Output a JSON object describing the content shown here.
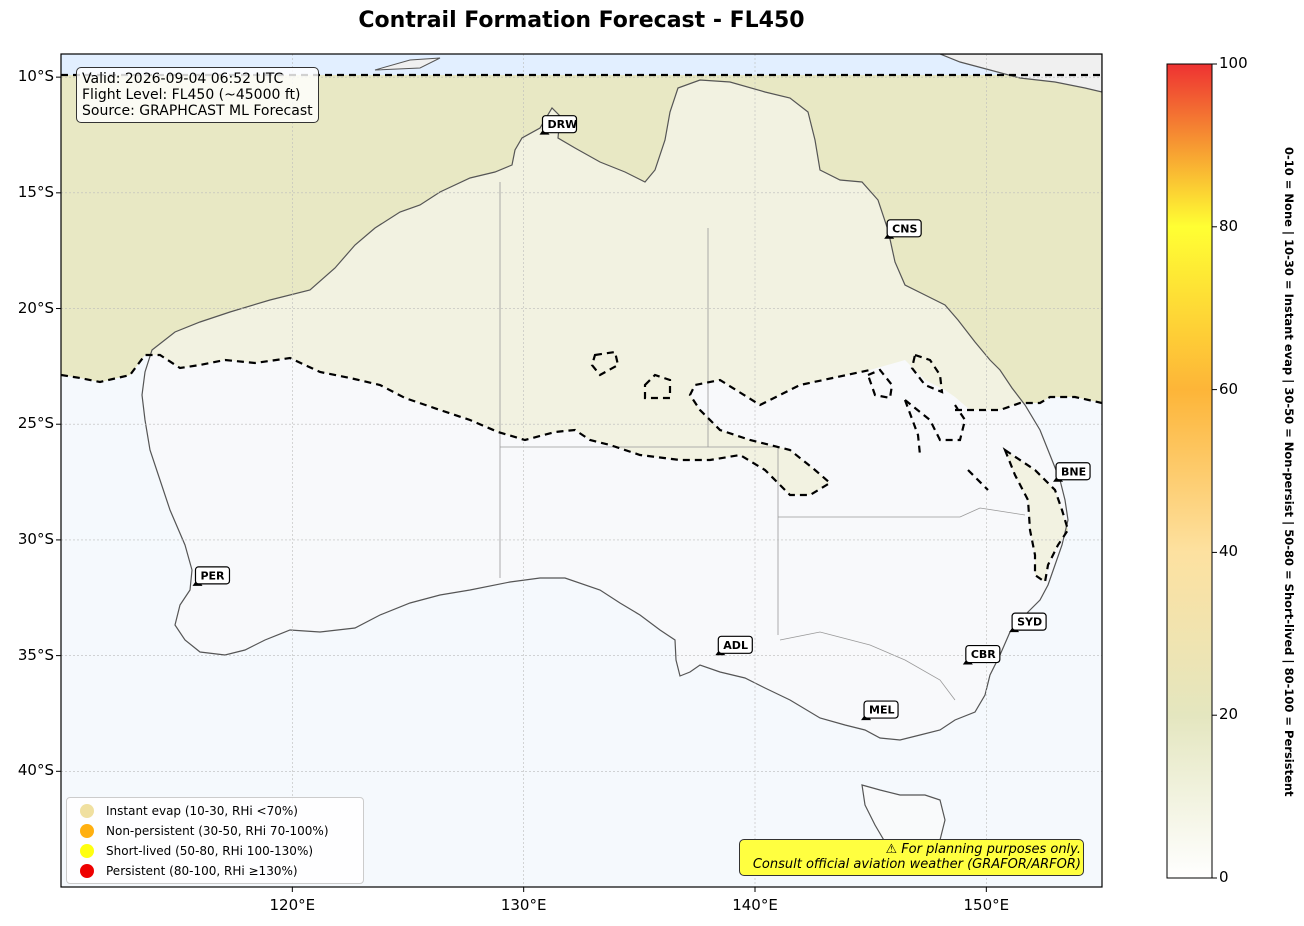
{
  "title": "Contrail Formation Forecast - FL450",
  "info": {
    "valid": "Valid: 2026-09-04 06:52 UTC",
    "flight_level": "Flight Level: FL450 (~45000 ft)",
    "source": "Source: GRAPHCAST ML Forecast"
  },
  "map_extent": {
    "lon": [
      110,
      155
    ],
    "lat": [
      -45,
      -9
    ]
  },
  "lat_ticks": [
    {
      "value": -10,
      "label": "10°S"
    },
    {
      "value": -15,
      "label": "15°S"
    },
    {
      "value": -20,
      "label": "20°S"
    },
    {
      "value": -25,
      "label": "25°S"
    },
    {
      "value": -30,
      "label": "30°S"
    },
    {
      "value": -35,
      "label": "35°S"
    },
    {
      "value": -40,
      "label": "40°S"
    }
  ],
  "lon_ticks": [
    {
      "value": 120,
      "label": "120°E"
    },
    {
      "value": 130,
      "label": "130°E"
    },
    {
      "value": 140,
      "label": "140°E"
    },
    {
      "value": 150,
      "label": "150°E"
    }
  ],
  "airports": [
    {
      "code": "DRW",
      "lon": 130.9,
      "lat": -12.4
    },
    {
      "code": "CNS",
      "lon": 145.8,
      "lat": -16.9
    },
    {
      "code": "BNE",
      "lon": 153.1,
      "lat": -27.4
    },
    {
      "code": "PER",
      "lon": 115.9,
      "lat": -31.9
    },
    {
      "code": "SYD",
      "lon": 151.2,
      "lat": -33.9
    },
    {
      "code": "ADL",
      "lon": 138.5,
      "lat": -34.9
    },
    {
      "code": "CBR",
      "lon": 149.2,
      "lat": -35.3
    },
    {
      "code": "MEL",
      "lon": 144.8,
      "lat": -37.7
    }
  ],
  "legend": [
    {
      "label": "Instant evap (10-30, RHi <70%)",
      "color": "#f0e0a0"
    },
    {
      "label": "Non-persistent (30-50, RHi 70-100%)",
      "color": "#ffb010"
    },
    {
      "label": "Short-lived (50-80, RHi 100-130%)",
      "color": "#ffff10"
    },
    {
      "label": "Persistent (80-100, RHi ≥130%)",
      "color": "#ee0000"
    }
  ],
  "disclaimer": {
    "line1": "⚠ For planning purposes only.",
    "line2": "Consult official aviation weather (GRAFOR/ARFOR)"
  },
  "colorbar": {
    "range": [
      0,
      100
    ],
    "ticks": [
      {
        "value": 0,
        "label": "0"
      },
      {
        "value": 20,
        "label": "20"
      },
      {
        "value": 40,
        "label": "40"
      },
      {
        "value": 60,
        "label": "60"
      },
      {
        "value": 80,
        "label": "80"
      },
      {
        "value": 100,
        "label": "100"
      }
    ],
    "label": "0-10 = None  |  10-30 = Instant evap  |  30-50 = Non-persist  |  50-80 = Short-lived  |  80-100 = Persistent",
    "colors": [
      "#ffffff",
      "#e6e6c0",
      "#fddf9a",
      "#fdb035",
      "#ffff30",
      "#ee3030"
    ]
  }
}
